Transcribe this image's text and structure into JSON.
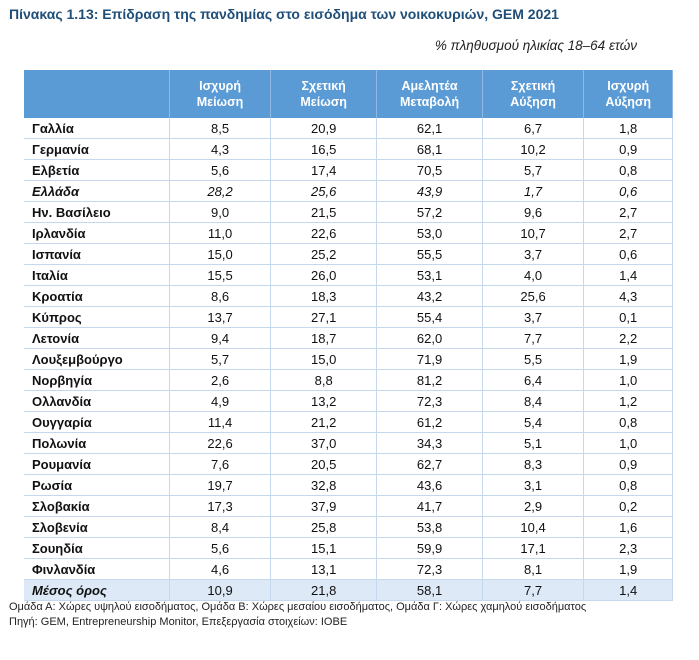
{
  "title": "Πίνακας 1.13: Επίδραση της πανδημίας στο εισόδημα των νοικοκυριών, GEM 2021",
  "subtitle": "% πληθυσμού ηλικίας 18–64 ετών",
  "headers": [
    "",
    "Ισχυρή Μείωση",
    "Σχετική Μείωση",
    "Αμελητέα Μεταβολή",
    "Σχετική Αύξηση",
    "Ισχυρή Αύξηση"
  ],
  "rows": [
    [
      "Γαλλία",
      "8,5",
      "20,9",
      "62,1",
      "6,7",
      "1,8"
    ],
    [
      "Γερμανία",
      "4,3",
      "16,5",
      "68,1",
      "10,2",
      "0,9"
    ],
    [
      "Ελβετία",
      "5,6",
      "17,4",
      "70,5",
      "5,7",
      "0,8"
    ],
    [
      "Ελλάδα",
      "28,2",
      "25,6",
      "43,9",
      "1,7",
      "0,6"
    ],
    [
      "Ην. Βασίλειο",
      "9,0",
      "21,5",
      "57,2",
      "9,6",
      "2,7"
    ],
    [
      "Ιρλανδία",
      "11,0",
      "22,6",
      "53,0",
      "10,7",
      "2,7"
    ],
    [
      "Ισπανία",
      "15,0",
      "25,2",
      "55,5",
      "3,7",
      "0,6"
    ],
    [
      "Ιταλία",
      "15,5",
      "26,0",
      "53,1",
      "4,0",
      "1,4"
    ],
    [
      "Κροατία",
      "8,6",
      "18,3",
      "43,2",
      "25,6",
      "4,3"
    ],
    [
      "Κύπρος",
      "13,7",
      "27,1",
      "55,4",
      "3,7",
      "0,1"
    ],
    [
      "Λετονία",
      "9,4",
      "18,7",
      "62,0",
      "7,7",
      "2,2"
    ],
    [
      "Λουξεμβούργο",
      "5,7",
      "15,0",
      "71,9",
      "5,5",
      "1,9"
    ],
    [
      "Νορβηγία",
      "2,6",
      "8,8",
      "81,2",
      "6,4",
      "1,0"
    ],
    [
      "Ολλανδία",
      "4,9",
      "13,2",
      "72,3",
      "8,4",
      "1,2"
    ],
    [
      "Ουγγαρία",
      "11,4",
      "21,2",
      "61,2",
      "5,4",
      "0,8"
    ],
    [
      "Πολωνία",
      "22,6",
      "37,0",
      "34,3",
      "5,1",
      "1,0"
    ],
    [
      "Ρουμανία",
      "7,6",
      "20,5",
      "62,7",
      "8,3",
      "0,9"
    ],
    [
      "Ρωσία",
      "19,7",
      "32,8",
      "43,6",
      "3,1",
      "0,8"
    ],
    [
      "Σλοβακία",
      "17,3",
      "37,9",
      "41,7",
      "2,9",
      "0,2"
    ],
    [
      "Σλοβενία",
      "8,4",
      "25,8",
      "53,8",
      "10,4",
      "1,6"
    ],
    [
      "Σουηδία",
      "5,6",
      "15,1",
      "59,9",
      "17,1",
      "2,3"
    ],
    [
      "Φινλανδία",
      "4,6",
      "13,1",
      "72,3",
      "8,1",
      "1,9"
    ],
    [
      "Μέσος όρος",
      "10,9",
      "21,8",
      "58,1",
      "7,7",
      "1,4"
    ]
  ],
  "note": "Ομάδα Α: Χώρες υψηλού εισοδήματος, Ομάδα Β: Χώρες μεσαίου εισοδήματος, Ομάδα Γ: Χώρες χαμηλού εισοδήματος",
  "source": "Πηγή: GEM, Entrepreneurship Monitor, Επεξεργασία στοιχείων: IOBE"
}
